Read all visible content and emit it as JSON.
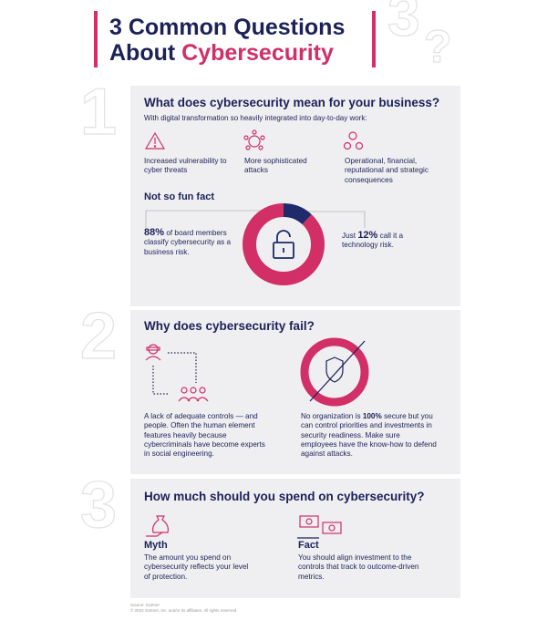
{
  "header": {
    "title_line1": "3 Common Questions",
    "title_line2_prefix": "About",
    "title_line2_highlight": "Cybersecurity",
    "badge_number": "3",
    "badge_mark": "?"
  },
  "sections": [
    {
      "number": "1",
      "heading": "What does cybersecurity mean for your business?",
      "intro": "With digital transformation so heavily integrated into day-to-day work:",
      "items": [
        "Increased vulnerability to cyber threats",
        "More sophisticated attacks",
        "Operational, financial, reputational and strategic consequences"
      ],
      "fact_heading": "Not so fun fact",
      "stats": [
        {
          "value": 88,
          "value_label": "88%",
          "text": "of board members classify cybersecurity as a business risk.",
          "color": "#d12f66"
        },
        {
          "value": 12,
          "value_label": "12%",
          "prefix": "Just",
          "text": "call it a technology risk.",
          "color": "#1f2a6b"
        }
      ]
    },
    {
      "number": "2",
      "heading": "Why does cybersecurity fail?",
      "left_text": "A lack of adequate controls — and people. Often the human element features heavily because cybercriminals have become experts in social engineering.",
      "right_prefix": "No organization is",
      "right_emphasis": "100%",
      "right_suffix": "secure but you can control priorities and investments in security readiness. Make sure employees have the know-how to defend against attacks."
    },
    {
      "number": "3",
      "heading": "How much should you spend on cybersecurity?",
      "myth_title": "Myth",
      "myth_text": "The amount you spend on cybersecurity reflects your level of protection.",
      "fact_title": "Fact",
      "fact_text": "You should align investment to the controls that track to outcome-driven metrics."
    }
  ],
  "footer": {
    "source": "Source: Gartner",
    "copyright": "© 2022 Gartner, Inc. and/or its affiliates. All rights reserved."
  }
}
